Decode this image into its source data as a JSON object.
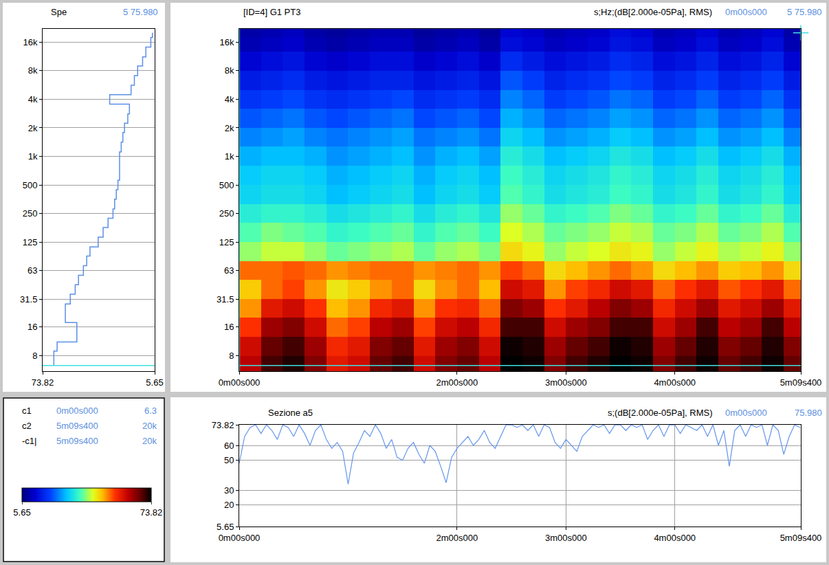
{
  "chart_data": [
    {
      "type": "line",
      "title": "Spe",
      "subtitle": "5 75.980",
      "orientation": "horizontal",
      "y": [
        6.3,
        8,
        10,
        12.5,
        16,
        20,
        25,
        31.5,
        40,
        50,
        63,
        80,
        100,
        125,
        160,
        200,
        250,
        315,
        400,
        500,
        630,
        800,
        1000,
        1250,
        1600,
        2000,
        2500,
        3150,
        4000,
        5000,
        6300,
        8000,
        10000,
        12500,
        16000,
        20000
      ],
      "values": [
        67,
        67,
        65,
        53,
        53,
        60,
        60,
        57,
        54,
        52,
        49,
        47,
        45,
        40,
        37,
        34,
        31,
        30,
        29,
        28,
        27,
        27,
        27,
        26,
        25,
        24,
        22,
        21,
        33,
        20,
        18,
        16,
        13,
        11,
        8,
        7
      ],
      "color": "#5b8fe6",
      "line_style": "step",
      "xlim": [
        73.82,
        5.65
      ],
      "xticks": [
        73.82,
        5.65
      ],
      "ylim": [
        5.5,
        22000
      ],
      "yticks": [
        8,
        16,
        31.5,
        63,
        125,
        250,
        500,
        {
          "value": 1000,
          "label": "1k"
        },
        {
          "value": 2000,
          "label": "2k"
        },
        {
          "value": 4000,
          "label": "4k"
        },
        {
          "value": 8000,
          "label": "8k"
        },
        {
          "value": 16000,
          "label": "16k"
        }
      ],
      "log": "y",
      "grid": true,
      "cursors": [
        {
          "y": 6.3,
          "color": "#40e0e0",
          "line_style": "solid"
        }
      ]
    },
    {
      "type": "heatmap",
      "title": "[ID=4] G1 PT3",
      "annotations": [
        "s;Hz;(dB[2.000e-05Pa], RMS)",
        "0m00s000",
        "5 75.980"
      ],
      "x": [
        6,
        18,
        30,
        42,
        54,
        66,
        78,
        90,
        102,
        114,
        126,
        138,
        150,
        162,
        174,
        186,
        198,
        210,
        222,
        234,
        246,
        258,
        270,
        282,
        294,
        306
      ],
      "y": [
        6.3,
        10,
        16,
        25,
        40,
        63,
        100,
        160,
        250,
        400,
        630,
        1000,
        1600,
        2500,
        4000,
        6300,
        10000,
        16000,
        20000
      ],
      "z": [
        [
          62,
          70,
          72,
          66,
          58,
          60,
          68,
          70,
          60,
          66,
          68,
          62,
          74,
          73,
          66,
          70,
          72,
          74,
          73,
          66,
          70,
          73,
          68,
          70,
          73,
          68
        ],
        [
          60,
          68,
          70,
          64,
          56,
          58,
          66,
          68,
          58,
          64,
          66,
          60,
          73,
          72,
          64,
          68,
          70,
          73,
          72,
          64,
          68,
          72,
          66,
          68,
          72,
          66
        ],
        [
          55,
          64,
          66,
          60,
          52,
          54,
          62,
          64,
          54,
          60,
          62,
          56,
          70,
          70,
          60,
          64,
          66,
          70,
          70,
          60,
          64,
          70,
          62,
          64,
          70,
          62
        ],
        [
          50,
          58,
          60,
          55,
          48,
          50,
          56,
          58,
          50,
          55,
          56,
          52,
          66,
          64,
          55,
          58,
          62,
          66,
          64,
          56,
          60,
          64,
          58,
          60,
          64,
          58
        ],
        [
          47,
          52,
          54,
          50,
          45,
          47,
          50,
          52,
          46,
          50,
          52,
          48,
          60,
          58,
          50,
          54,
          56,
          60,
          58,
          52,
          55,
          58,
          53,
          55,
          58,
          52
        ],
        [
          52,
          52,
          53,
          52,
          50,
          51,
          52,
          52,
          50,
          51,
          52,
          50,
          54,
          52,
          46,
          48,
          50,
          52,
          50,
          46,
          48,
          50,
          47,
          48,
          50,
          46
        ],
        [
          40,
          42,
          42,
          40,
          38,
          39,
          40,
          41,
          38,
          40,
          41,
          39,
          46,
          44,
          40,
          42,
          43,
          45,
          44,
          40,
          42,
          44,
          41,
          42,
          44,
          40
        ],
        [
          37,
          39,
          38,
          37,
          35,
          36,
          37,
          38,
          35,
          37,
          38,
          36,
          43,
          41,
          38,
          39,
          40,
          42,
          41,
          38,
          39,
          41,
          38,
          39,
          41,
          37
        ],
        [
          34,
          35,
          35,
          34,
          32,
          33,
          34,
          35,
          32,
          34,
          35,
          33,
          40,
          38,
          35,
          36,
          37,
          39,
          38,
          35,
          36,
          38,
          35,
          36,
          38,
          34
        ],
        [
          31,
          32,
          32,
          31,
          29,
          30,
          31,
          32,
          29,
          31,
          32,
          30,
          37,
          35,
          32,
          33,
          34,
          36,
          35,
          32,
          33,
          35,
          32,
          33,
          35,
          31
        ],
        [
          30,
          31,
          31,
          30,
          28,
          29,
          30,
          31,
          28,
          30,
          31,
          29,
          36,
          34,
          31,
          32,
          33,
          35,
          34,
          31,
          32,
          34,
          31,
          32,
          34,
          30
        ],
        [
          28,
          29,
          29,
          28,
          26,
          27,
          28,
          29,
          26,
          28,
          29,
          27,
          34,
          32,
          29,
          30,
          31,
          33,
          32,
          29,
          30,
          32,
          29,
          30,
          32,
          28
        ],
        [
          25,
          26,
          27,
          25,
          24,
          25,
          26,
          27,
          24,
          25,
          26,
          24,
          31,
          29,
          26,
          27,
          28,
          30,
          29,
          26,
          27,
          29,
          26,
          27,
          29,
          25
        ],
        [
          22,
          23,
          24,
          22,
          21,
          22,
          23,
          24,
          21,
          22,
          23,
          21,
          28,
          26,
          23,
          24,
          25,
          27,
          26,
          23,
          24,
          26,
          23,
          24,
          26,
          22
        ],
        [
          19,
          20,
          21,
          19,
          18,
          19,
          20,
          21,
          18,
          19,
          20,
          18,
          25,
          23,
          20,
          21,
          22,
          24,
          23,
          20,
          21,
          23,
          20,
          21,
          23,
          19
        ],
        [
          16,
          17,
          18,
          16,
          15,
          16,
          17,
          17,
          15,
          16,
          17,
          15,
          22,
          20,
          17,
          18,
          19,
          21,
          20,
          17,
          18,
          20,
          17,
          18,
          20,
          16
        ],
        [
          13,
          14,
          15,
          13,
          12,
          13,
          14,
          14,
          12,
          13,
          14,
          12,
          18,
          16,
          14,
          15,
          16,
          18,
          17,
          14,
          15,
          17,
          14,
          15,
          17,
          13
        ],
        [
          10,
          11,
          12,
          10,
          9,
          10,
          11,
          11,
          9,
          10,
          11,
          9,
          14,
          13,
          11,
          12,
          13,
          15,
          14,
          11,
          12,
          14,
          11,
          12,
          14,
          10
        ],
        [
          9,
          10,
          11,
          9,
          8,
          9,
          10,
          10,
          8,
          9,
          10,
          8,
          13,
          12,
          10,
          11,
          12,
          14,
          13,
          10,
          11,
          13,
          10,
          11,
          13,
          9
        ]
      ],
      "colorbar": {
        "range": [
          5.65,
          73.82
        ],
        "ticks": [
          5.65,
          73.82
        ]
      },
      "xlim": [
        0,
        309.4
      ],
      "xticks": [
        {
          "value": 0,
          "label": "0m00s000"
        },
        {
          "value": 120,
          "label": "2m00s000"
        },
        {
          "value": 180,
          "label": "3m00s000"
        },
        {
          "value": 240,
          "label": "4m00s000"
        },
        {
          "value": 309.4,
          "label": "5m09s400"
        }
      ],
      "ylim": [
        5.5,
        22000
      ],
      "yticks": [
        8,
        16,
        31.5,
        63,
        125,
        250,
        500,
        {
          "value": 1000,
          "label": "1k"
        },
        {
          "value": 2000,
          "label": "2k"
        },
        {
          "value": 4000,
          "label": "4k"
        },
        {
          "value": 8000,
          "label": "8k"
        },
        {
          "value": 16000,
          "label": "16k"
        }
      ],
      "log": "y",
      "grid": false,
      "cursors": [
        {
          "x": 0,
          "y": 6.3,
          "color": "#40e0e0",
          "line_style": "crosshair"
        },
        {
          "x": 309.4,
          "y": 20000,
          "color": "#40e0e0",
          "marker": "cross"
        }
      ]
    },
    {
      "type": "line",
      "title": "Sezione a5",
      "annotations": [
        "s;(dB[2.000e-05Pa], RMS)",
        "0m00s000",
        "75.980"
      ],
      "x": [
        0,
        3,
        6,
        9,
        12,
        15,
        18,
        21,
        24,
        27,
        30,
        33,
        36,
        39,
        42,
        45,
        48,
        51,
        54,
        57,
        60,
        63,
        66,
        69,
        72,
        75,
        78,
        81,
        84,
        87,
        90,
        93,
        96,
        99,
        102,
        105,
        108,
        111,
        114,
        117,
        120,
        123,
        126,
        129,
        132,
        135,
        138,
        141,
        144,
        147,
        150,
        153,
        156,
        159,
        162,
        165,
        168,
        171,
        174,
        177,
        180,
        183,
        186,
        189,
        192,
        195,
        198,
        201,
        204,
        207,
        210,
        213,
        216,
        219,
        222,
        225,
        228,
        231,
        234,
        237,
        240,
        243,
        246,
        249,
        252,
        255,
        258,
        261,
        264,
        267,
        270,
        273,
        276,
        279,
        282,
        285,
        288,
        291,
        294,
        297,
        300,
        303,
        306,
        309
      ],
      "values": [
        48,
        66,
        72,
        73.8,
        68,
        73.8,
        70,
        64,
        73.8,
        72,
        66,
        73.8,
        68,
        60,
        70,
        73.8,
        64,
        58,
        62,
        56,
        34,
        55,
        62,
        70,
        66,
        73.8,
        68,
        58,
        64,
        52,
        50,
        58,
        62,
        54,
        48,
        60,
        56,
        46,
        35,
        52,
        58,
        62,
        66,
        60,
        64,
        70,
        62,
        58,
        66,
        73.8,
        73.8,
        72,
        73.8,
        70,
        73.8,
        66,
        73.8,
        72,
        62,
        58,
        64,
        60,
        56,
        66,
        70,
        73.8,
        72,
        73.8,
        68,
        73.8,
        73.8,
        70,
        73.8,
        72,
        73.8,
        64,
        70,
        73.8,
        66,
        73.8,
        73.8,
        68,
        73.8,
        72,
        70,
        73.8,
        66,
        73.8,
        60,
        70,
        46,
        70,
        73.8,
        66,
        73.8,
        72,
        73.8,
        60,
        73.8,
        70,
        54,
        66,
        73.8,
        72
      ],
      "color": "#6495ed",
      "xlim": [
        0,
        309.4
      ],
      "xticks": [
        {
          "value": 0,
          "label": "0m00s000"
        },
        {
          "value": 120,
          "label": "2m00s000"
        },
        {
          "value": 180,
          "label": "3m00s000"
        },
        {
          "value": 240,
          "label": "4m00s000"
        },
        {
          "value": 309.4,
          "label": "5m09s400"
        }
      ],
      "ylim": [
        5.65,
        73.82
      ],
      "yticks": [
        5.65,
        20,
        30,
        50,
        60,
        73.82
      ],
      "grid": true
    }
  ],
  "cursor_table": {
    "rows": [
      [
        "c1",
        "0m00s000",
        "6.3"
      ],
      [
        "c2",
        "5m09s400",
        "20k"
      ],
      [
        "-c1|",
        "5m09s400",
        "20k"
      ]
    ]
  }
}
